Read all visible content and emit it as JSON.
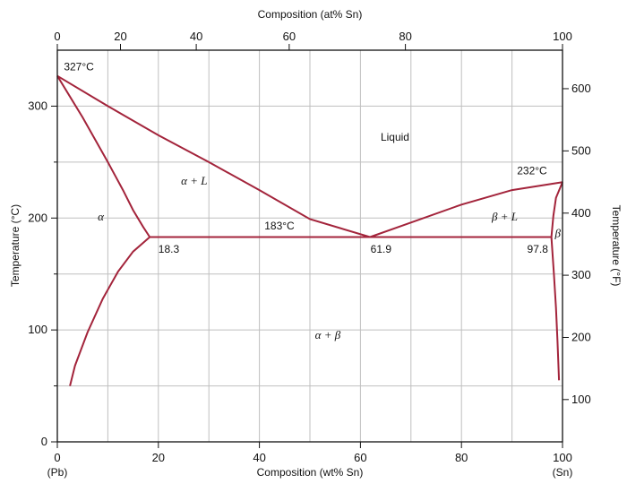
{
  "chart_data": {
    "type": "line",
    "title": "",
    "xlabel_bottom": "Composition (wt% Sn)",
    "xlabel_top": "Composition (at% Sn)",
    "ylabel_left": "Temperature (°C)",
    "ylabel_right": "Temperature (°F)",
    "end_label_left": "(Pb)",
    "end_label_right": "(Sn)",
    "xlim": [
      0,
      100
    ],
    "ylim": [
      0,
      350
    ],
    "grid": true,
    "x_ticks_bottom": [
      "0",
      "20",
      "40",
      "60",
      "80",
      "100"
    ],
    "x_ticks_top": [
      "0",
      "20",
      "40",
      "60",
      "80",
      "100"
    ],
    "x_ticks_top_wt_positions": [
      0,
      12.5,
      27.5,
      45.9,
      68.9,
      100
    ],
    "y_ticks_left": [
      "0",
      "100",
      "200",
      "300"
    ],
    "y_ticks_right": [
      "100",
      "200",
      "300",
      "400",
      "500",
      "600"
    ],
    "y_ticks_right_celsius": [
      37.8,
      93.3,
      148.9,
      204.4,
      260.0,
      315.6
    ],
    "series": [
      {
        "x": [
          0,
          5,
          10,
          13,
          15,
          17,
          18.3
        ],
        "y": [
          327,
          290,
          250,
          225,
          207,
          192,
          183
        ]
      },
      {
        "x": [
          0,
          10,
          20,
          30,
          40,
          50,
          61.9
        ],
        "y": [
          327,
          300,
          274,
          250,
          225,
          199,
          183
        ]
      },
      {
        "x": [
          61.9,
          70,
          80,
          90,
          100
        ],
        "y": [
          183,
          196,
          212,
          225,
          232
        ]
      },
      {
        "x": [
          18.3,
          61.9,
          97.8
        ],
        "y": [
          183,
          183,
          183
        ]
      },
      {
        "x": [
          18.3,
          15,
          12,
          9,
          6,
          3.5,
          2.5
        ],
        "y": [
          183,
          170,
          152,
          128,
          98,
          68,
          50
        ]
      },
      {
        "x": [
          100,
          98.7,
          98.2,
          97.8
        ],
        "y": [
          232,
          218,
          202,
          183
        ]
      },
      {
        "x": [
          97.8,
          98.3,
          98.7,
          99.0,
          99.3
        ],
        "y": [
          183,
          150,
          120,
          90,
          55
        ]
      }
    ],
    "annotations": [
      {
        "text": "327°C",
        "x": 1.3,
        "y": 332
      },
      {
        "text": "232°C",
        "x": 91,
        "y": 239
      },
      {
        "text": "183°C",
        "x": 41,
        "y": 190
      },
      {
        "text": "18.3",
        "x": 20,
        "y": 169
      },
      {
        "text": "61.9",
        "x": 62,
        "y": 169
      },
      {
        "text": "97.8",
        "x": 93,
        "y": 169
      },
      {
        "text": "Liquid",
        "x": 64,
        "y": 269
      },
      {
        "text": "α + L",
        "x": 24.5,
        "y": 230,
        "style": "italic"
      },
      {
        "text": "α",
        "x": 8,
        "y": 198,
        "style": "italic"
      },
      {
        "text": "β + L",
        "x": 86,
        "y": 198,
        "style": "italic"
      },
      {
        "text": "β",
        "x": 98.5,
        "y": 183,
        "style": "italic"
      },
      {
        "text": "α + β",
        "x": 51,
        "y": 92,
        "style": "italic"
      }
    ]
  }
}
